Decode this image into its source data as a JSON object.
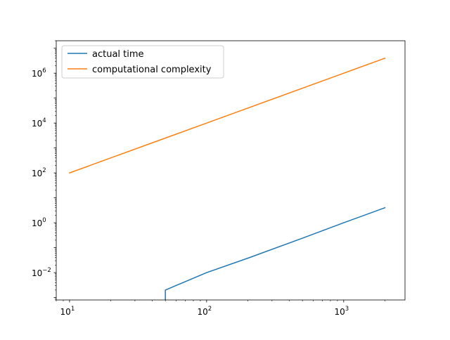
{
  "chart_data": {
    "type": "line",
    "title": "",
    "xlabel": "",
    "ylabel": "",
    "xscale": "log",
    "yscale": "log",
    "xlim": [
      8,
      2800
    ],
    "ylim": [
      0.0008,
      20000000
    ],
    "grid": false,
    "legend_position": "upper-left",
    "x_ticks": [
      {
        "value": 10,
        "base": "10",
        "exp": "1"
      },
      {
        "value": 100,
        "base": "10",
        "exp": "2"
      },
      {
        "value": 1000,
        "base": "10",
        "exp": "3"
      }
    ],
    "y_ticks": [
      {
        "value": 0.01,
        "base": "10",
        "exp": "−2"
      },
      {
        "value": 1,
        "base": "10",
        "exp": "0"
      },
      {
        "value": 100,
        "base": "10",
        "exp": "2"
      },
      {
        "value": 10000,
        "base": "10",
        "exp": "4"
      },
      {
        "value": 1000000,
        "base": "10",
        "exp": "6"
      }
    ],
    "series": [
      {
        "name": "actual time",
        "color": "#1f77b4",
        "x": [
          50,
          50,
          100,
          200,
          500,
          1000,
          2000
        ],
        "y": [
          0.0002,
          0.002,
          0.01,
          0.038,
          0.24,
          1.0,
          4.0
        ]
      },
      {
        "name": "computational complexity",
        "color": "#ff7f0e",
        "x": [
          10,
          50,
          100,
          200,
          500,
          1000,
          2000
        ],
        "y": [
          100,
          2500,
          10000,
          40000,
          250000,
          1000000,
          4000000
        ]
      }
    ]
  }
}
